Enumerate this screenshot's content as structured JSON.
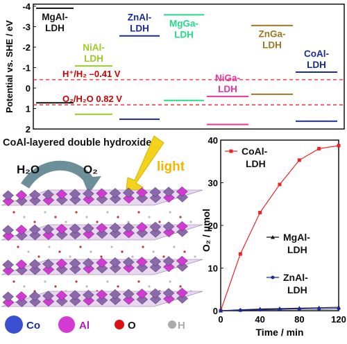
{
  "colors": {
    "dashed_reference": "#ee2222",
    "coal_series": "#ee2222",
    "mgal_series": "#111111",
    "znal_series": "#1a2a9a",
    "light_arrow": "#f2d21a",
    "co_atom": "#3a4fd0",
    "al_atom": "#d23ad2",
    "o_atom": "#dd1111",
    "h_atom": "#aaaaaa"
  },
  "band_diagram": {
    "ylabel": "Potential vs. SHE / eV",
    "yticks": [
      "-4",
      "-3",
      "-2",
      "-1",
      "0",
      "1",
      "2"
    ],
    "ylim": [
      -4.1,
      2.0
    ],
    "references": [
      {
        "label_html": "H⁺/H₂ –0.41 V",
        "value": -0.41
      },
      {
        "label_html": "O₂/H₂O 0.82 V",
        "value": 0.82
      }
    ],
    "materials": [
      {
        "name": "MgAl-\nLDH",
        "line1": "MgAl-",
        "line2": "LDH",
        "color": "#111111",
        "cb": -3.9,
        "vb": 0.72
      },
      {
        "name": "NiAl-LDH",
        "line1": "NiAl-",
        "line2": "LDH",
        "color": "#99cc22",
        "cb": -1.08,
        "vb": 1.28
      },
      {
        "name": "ZnAl-LDH",
        "line1": "ZnAl-",
        "line2": "LDH",
        "color": "#1a2a9a",
        "cb": -2.55,
        "vb": 1.52
      },
      {
        "name": "MgGa-LDH",
        "line1": "MgGa-",
        "line2": "LDH",
        "color": "#22dd88",
        "cb": -3.58,
        "vb": 0.6
      },
      {
        "name": "NiGa-LDH",
        "line1": "NiGa-",
        "line2": "LDH",
        "color": "#ee3399",
        "cb": 0.41,
        "vb": 1.78
      },
      {
        "name": "ZnGa-LDH",
        "line1": "ZnGa-",
        "line2": "LDH",
        "color": "#997722",
        "cb": -3.06,
        "vb": 0.3
      },
      {
        "name": "CoAl-LDH",
        "line1": "CoAl-",
        "line2": "LDH",
        "color": "#1a2a9a",
        "cb": -0.78,
        "vb": 1.62
      }
    ]
  },
  "illustration": {
    "title": "CoAl-layered double hydroxide",
    "h2o": "H₂O",
    "o2": "O₂",
    "light": "light",
    "legend": [
      {
        "symbol": "Co",
        "color": "#3a4fd0"
      },
      {
        "symbol": "Al",
        "color": "#d23ad2"
      },
      {
        "symbol": "O",
        "color": "#dd1111"
      },
      {
        "symbol": "H",
        "color": "#aaaaaa"
      }
    ]
  },
  "chart_data": {
    "type": "line",
    "xlabel": "Time / min",
    "ylabel": "O₂ / μmol",
    "xlim": [
      0,
      120
    ],
    "ylim": [
      0,
      40
    ],
    "xticks": [
      "0",
      "40",
      "80",
      "120"
    ],
    "yticks": [
      "0",
      "10",
      "20",
      "30",
      "40"
    ],
    "series": [
      {
        "name": "CoAl-LDH",
        "line1": "CoAl-",
        "line2": "LDH",
        "color": "#ee2222",
        "marker": "square",
        "x": [
          0,
          20,
          40,
          60,
          80,
          100,
          120
        ],
        "y": [
          0,
          13.3,
          23.0,
          29.6,
          35.3,
          38.0,
          38.7
        ]
      },
      {
        "name": "MgAl-LDH",
        "line1": "MgAl-",
        "line2": "LDH",
        "color": "#111111",
        "marker": "triangle",
        "x": [
          0,
          20,
          40,
          60,
          80,
          100,
          120
        ],
        "y": [
          0,
          0.2,
          0.4,
          0.5,
          0.6,
          0.7,
          0.8
        ]
      },
      {
        "name": "ZnAl-LDH",
        "line1": "ZnAl-",
        "line2": "LDH",
        "color": "#1a2a9a",
        "marker": "circle",
        "x": [
          0,
          20,
          40,
          60,
          80,
          100,
          120
        ],
        "y": [
          0,
          0.1,
          0.2,
          0.3,
          0.4,
          0.4,
          0.5
        ]
      }
    ]
  }
}
